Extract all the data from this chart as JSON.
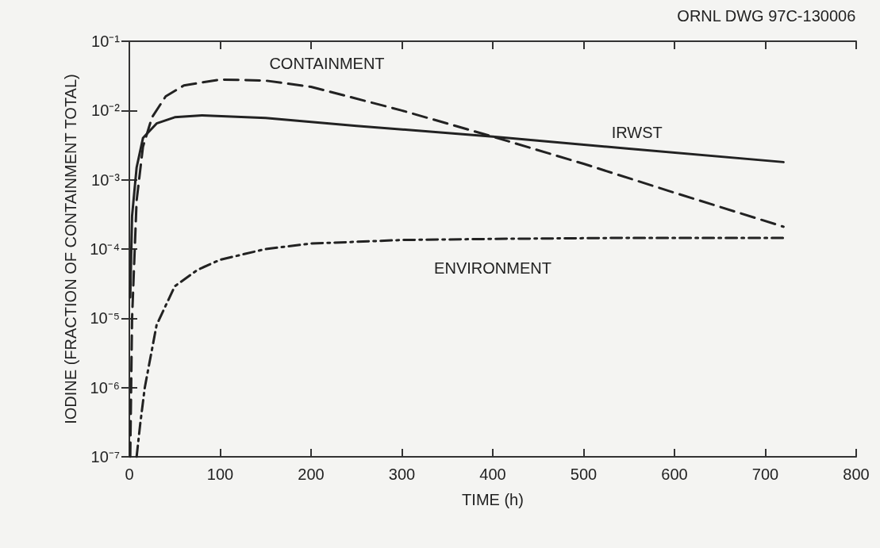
{
  "chart_data": {
    "type": "line",
    "xlabel": "TIME (h)",
    "ylabel": "IODINE (FRACTION OF CONTAINMENT TOTAL)",
    "annotations": [
      "ORNL DWG 97C-130006"
    ],
    "log": "y",
    "grid": false,
    "legend": false,
    "marker": "none",
    "xlim": [
      0,
      800
    ],
    "xticks": [
      0,
      100,
      200,
      300,
      400,
      500,
      600,
      700,
      800
    ],
    "ylim": [
      1e-07,
      0.1
    ],
    "yticks": [
      {
        "value": 1e-07,
        "label": "10⁻⁷"
      },
      {
        "value": 1e-06,
        "label": "10⁻⁶"
      },
      {
        "value": 1e-05,
        "label": "10⁻⁵"
      },
      {
        "value": 0.0001,
        "label": "10⁻⁴"
      },
      {
        "value": 0.001,
        "label": "10⁻³"
      },
      {
        "value": 0.01,
        "label": "10⁻²"
      },
      {
        "value": 0.1,
        "label": "10⁻¹"
      }
    ],
    "series": [
      {
        "name": "CONTAINMENT",
        "color": "#222222",
        "line_style": "dashed",
        "x": [
          1,
          3,
          8,
          15,
          25,
          40,
          60,
          100,
          150,
          200,
          300,
          400,
          500,
          600,
          720
        ],
        "values": [
          1e-07,
          1e-05,
          0.0005,
          0.003,
          0.008,
          0.016,
          0.023,
          0.028,
          0.027,
          0.022,
          0.01,
          0.0042,
          0.0017,
          0.00065,
          0.00021
        ]
      },
      {
        "name": "IRWST",
        "color": "#222222",
        "line_style": "solid",
        "x": [
          1,
          3,
          8,
          15,
          30,
          50,
          80,
          150,
          250,
          400,
          550,
          720
        ],
        "values": [
          2e-05,
          0.0003,
          0.0015,
          0.004,
          0.0065,
          0.008,
          0.0085,
          0.0078,
          0.006,
          0.0042,
          0.0028,
          0.0018
        ]
      },
      {
        "name": "ENVIRONMENT",
        "color": "#222222",
        "line_style": "dashdot",
        "x": [
          8,
          12,
          17,
          30,
          50,
          75,
          100,
          150,
          200,
          300,
          400,
          550,
          720
        ],
        "values": [
          1e-07,
          3e-07,
          1e-06,
          8e-06,
          2.9e-05,
          5e-05,
          7e-05,
          0.0001,
          0.00012,
          0.000135,
          0.00014,
          0.000145,
          0.000145
        ]
      }
    ]
  }
}
